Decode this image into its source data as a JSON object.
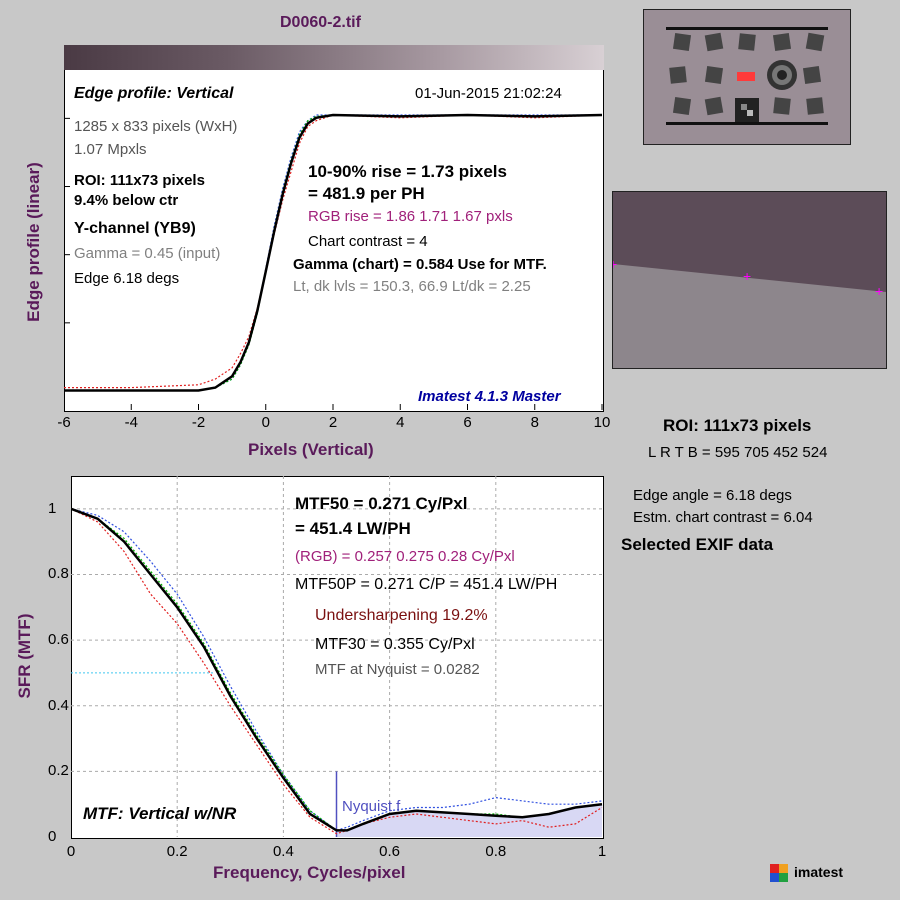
{
  "file_title": "D0060-2.tif",
  "edge_panel": {
    "heading": "Edge profile: Vertical",
    "timestamp": "01-Jun-2015 21:02:24",
    "size": "1285 x 833 pixels (WxH)",
    "mpxls": "1.07 Mpxls",
    "roi": "ROI:  111x73 pixels",
    "below_ctr": "9.4% below ctr",
    "channel": "Y-channel  (YB9)",
    "gamma_input": "Gamma = 0.45 (input)",
    "edge_angle": "Edge 6.18 degs",
    "rise_line1": "10-90% rise = 1.73 pixels",
    "rise_line2": "= 481.9 per PH",
    "rgb_rise": "RGB rise = 1.86  1.71  1.67 pxls",
    "chart_contrast": "Chart contrast = 4",
    "gamma_chart": "Gamma (chart) = 0.584  Use for MTF.",
    "levels": "Lt, dk lvls = 150.3, 66.9   Lt/dk = 2.25",
    "version": "Imatest 4.1.3 Master",
    "ylabel": "Edge profile (linear)",
    "xlabel": "Pixels (Vertical)",
    "xticks": [
      "-6",
      "-4",
      "-2",
      "0",
      "2",
      "4",
      "6",
      "8",
      "10"
    ]
  },
  "mtf_panel": {
    "mtf50_line1": "MTF50 = 0.271 Cy/Pxl",
    "mtf50_line2": "= 451.4 LW/PH",
    "rgb_mtf50": "(RGB) = 0.257  0.275  0.28 Cy/Pxl",
    "mtf50p": "MTF50P = 0.271 C/P = 451.4 LW/PH",
    "undersharpening": "Undersharpening 19.2%",
    "mtf30": "MTF30 = 0.355 Cy/Pxl",
    "nyquist_mtf": "MTF at Nyquist = 0.0282",
    "nyquist_label": "Nyquist f",
    "corner_label": "MTF: Vertical w/NR",
    "ylabel": "SFR (MTF)",
    "xlabel": "Frequency, Cycles/pixel",
    "xticks": [
      "0",
      "0.2",
      "0.4",
      "0.6",
      "0.8",
      "1"
    ],
    "yticks": [
      "0",
      "0.2",
      "0.4",
      "0.6",
      "0.8",
      "1"
    ]
  },
  "side": {
    "roi": "ROI:  111x73 pixels",
    "lrtb": "L R  T B = 595 705  452 524",
    "edge_angle": "Edge angle = 6.18 degs",
    "estm_contrast": "Estm. chart contrast = 6.04",
    "exif": "Selected EXIF data",
    "logo_text": "imatest"
  },
  "chart_data": [
    {
      "type": "line",
      "title": "Edge profile: Vertical",
      "xlabel": "Pixels (Vertical)",
      "ylabel": "Edge profile (linear)",
      "xlim": [
        -6,
        10
      ],
      "grid": false,
      "series": [
        {
          "name": "Y",
          "color": "#000000",
          "x": [
            -6,
            -4,
            -2,
            -1.5,
            -1,
            -0.75,
            -0.5,
            -0.25,
            0,
            0.25,
            0.5,
            0.75,
            1,
            1.25,
            1.5,
            2,
            4,
            6,
            8,
            10
          ],
          "y": [
            0.03,
            0.03,
            0.03,
            0.04,
            0.08,
            0.13,
            0.2,
            0.31,
            0.45,
            0.59,
            0.72,
            0.83,
            0.92,
            0.97,
            0.99,
            1.0,
            0.995,
            1.0,
            0.995,
            1.0
          ]
        },
        {
          "name": "R",
          "color": "#e02020",
          "x": [
            -6,
            -4,
            -2,
            -1.5,
            -1,
            -0.75,
            -0.5,
            -0.25,
            0,
            0.25,
            0.5,
            0.75,
            1,
            1.25,
            1.5,
            2,
            4,
            6,
            8,
            10
          ],
          "y": [
            0.04,
            0.04,
            0.05,
            0.07,
            0.11,
            0.16,
            0.22,
            0.32,
            0.45,
            0.58,
            0.7,
            0.8,
            0.9,
            0.96,
            0.98,
            1.0,
            0.99,
            1.0,
            0.99,
            1.0
          ]
        },
        {
          "name": "G",
          "color": "#00b000",
          "x": [
            -6,
            -4,
            -2,
            -1.5,
            -1,
            -0.75,
            -0.5,
            -0.25,
            0,
            0.25,
            0.5,
            0.75,
            1,
            1.25,
            1.5,
            2,
            4,
            6,
            8,
            10
          ],
          "y": [
            0.03,
            0.03,
            0.03,
            0.04,
            0.07,
            0.12,
            0.19,
            0.3,
            0.45,
            0.6,
            0.73,
            0.84,
            0.93,
            0.98,
            0.995,
            1.0,
            0.995,
            1.0,
            0.995,
            1.0
          ]
        },
        {
          "name": "B",
          "color": "#3050e0",
          "x": [
            -6,
            -4,
            -2,
            -1.5,
            -1,
            -0.75,
            -0.5,
            -0.25,
            0,
            0.25,
            0.5,
            0.75,
            1,
            1.25,
            1.5,
            2,
            4,
            6,
            8,
            10
          ],
          "y": [
            0.03,
            0.03,
            0.03,
            0.04,
            0.07,
            0.12,
            0.2,
            0.31,
            0.46,
            0.61,
            0.74,
            0.85,
            0.94,
            0.98,
            1.0,
            1.0,
            1.0,
            1.0,
            1.0,
            1.0
          ]
        }
      ]
    },
    {
      "type": "line",
      "title": "MTF: Vertical w/NR",
      "xlabel": "Frequency, Cycles/pixel",
      "ylabel": "SFR (MTF)",
      "xlim": [
        0,
        1
      ],
      "ylim": [
        0,
        1.1
      ],
      "grid": true,
      "nyquist": 0.5,
      "mtf50_level": 0.5,
      "series": [
        {
          "name": "Y",
          "color": "#000000",
          "x": [
            0,
            0.05,
            0.1,
            0.15,
            0.2,
            0.25,
            0.3,
            0.35,
            0.4,
            0.45,
            0.5,
            0.52,
            0.55,
            0.6,
            0.65,
            0.7,
            0.75,
            0.8,
            0.85,
            0.9,
            0.95,
            1.0
          ],
          "y": [
            1.0,
            0.97,
            0.9,
            0.8,
            0.7,
            0.58,
            0.43,
            0.3,
            0.18,
            0.07,
            0.02,
            0.02,
            0.04,
            0.07,
            0.08,
            0.075,
            0.07,
            0.065,
            0.06,
            0.07,
            0.09,
            0.1
          ]
        },
        {
          "name": "R",
          "color": "#e02020",
          "x": [
            0,
            0.05,
            0.1,
            0.15,
            0.2,
            0.25,
            0.3,
            0.35,
            0.4,
            0.45,
            0.5,
            0.52,
            0.55,
            0.6,
            0.65,
            0.7,
            0.75,
            0.8,
            0.85,
            0.9,
            0.95,
            1.0
          ],
          "y": [
            1.0,
            0.96,
            0.87,
            0.74,
            0.65,
            0.53,
            0.4,
            0.28,
            0.16,
            0.06,
            0.01,
            0.02,
            0.04,
            0.06,
            0.07,
            0.06,
            0.05,
            0.04,
            0.05,
            0.03,
            0.04,
            0.09
          ]
        },
        {
          "name": "G",
          "color": "#00b000",
          "x": [
            0,
            0.05,
            0.1,
            0.15,
            0.2,
            0.25,
            0.3,
            0.35,
            0.4,
            0.45,
            0.5,
            0.52,
            0.55,
            0.6,
            0.65,
            0.7,
            0.75,
            0.8,
            0.85,
            0.9,
            0.95,
            1.0
          ],
          "y": [
            1.0,
            0.97,
            0.91,
            0.81,
            0.71,
            0.59,
            0.44,
            0.31,
            0.19,
            0.08,
            0.02,
            0.02,
            0.04,
            0.07,
            0.08,
            0.075,
            0.07,
            0.07,
            0.06,
            0.07,
            0.09,
            0.1
          ]
        },
        {
          "name": "B",
          "color": "#3050e0",
          "x": [
            0,
            0.05,
            0.1,
            0.15,
            0.2,
            0.25,
            0.3,
            0.35,
            0.4,
            0.45,
            0.5,
            0.52,
            0.55,
            0.6,
            0.65,
            0.7,
            0.75,
            0.8,
            0.85,
            0.9,
            0.95,
            1.0
          ],
          "y": [
            1.0,
            0.98,
            0.93,
            0.84,
            0.74,
            0.61,
            0.46,
            0.32,
            0.19,
            0.08,
            0.02,
            0.03,
            0.05,
            0.08,
            0.09,
            0.09,
            0.1,
            0.12,
            0.11,
            0.1,
            0.1,
            0.11
          ]
        }
      ]
    }
  ]
}
